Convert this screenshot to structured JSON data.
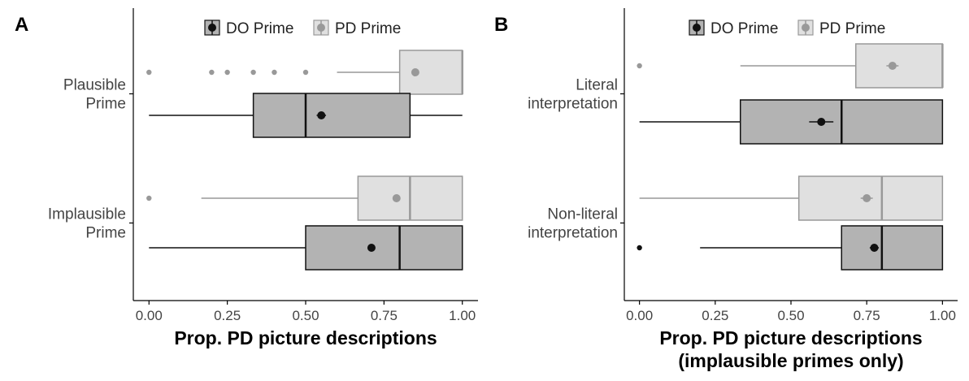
{
  "chart_data": [
    {
      "panel": "A",
      "type": "box",
      "orientation": "horizontal",
      "xlabel": "Prop. PD picture descriptions",
      "xlabel_line2": "",
      "xlim": [
        -0.05,
        1.05
      ],
      "xticks": [
        "0.00",
        "0.25",
        "0.50",
        "0.75",
        "1.00"
      ],
      "legend": {
        "position": "top",
        "entries": [
          "DO Prime",
          "PD Prime"
        ]
      },
      "groups": [
        {
          "label": [
            "Plausible",
            "Prime"
          ],
          "boxes": [
            {
              "series": "PD Prime",
              "whisker_low": 0.6,
              "q1": 0.8,
              "median": 1.0,
              "q3": 1.0,
              "whisker_high": 1.0,
              "mean": 0.85,
              "se": 0.008,
              "outliers": [
                0.0,
                0.2,
                0.25,
                0.333,
                0.4,
                0.5
              ]
            },
            {
              "series": "DO Prime",
              "whisker_low": 0.0,
              "q1": 0.333,
              "median": 0.5,
              "q3": 0.833,
              "whisker_high": 1.0,
              "mean": 0.55,
              "se": 0.015,
              "outliers": []
            }
          ]
        },
        {
          "label": [
            "Implausible",
            "Prime"
          ],
          "boxes": [
            {
              "series": "PD Prime",
              "whisker_low": 0.167,
              "q1": 0.667,
              "median": 0.833,
              "q3": 1.0,
              "whisker_high": 1.0,
              "mean": 0.79,
              "se": 0.012,
              "outliers": [
                0.0
              ]
            },
            {
              "series": "DO Prime",
              "whisker_low": 0.0,
              "q1": 0.5,
              "median": 0.8,
              "q3": 1.0,
              "whisker_high": 1.0,
              "mean": 0.71,
              "se": 0.012,
              "outliers": []
            }
          ]
        }
      ]
    },
    {
      "panel": "B",
      "type": "box",
      "orientation": "horizontal",
      "xlabel": "Prop. PD picture descriptions",
      "xlabel_line2": "(implausible primes only)",
      "xlim": [
        -0.05,
        1.05
      ],
      "xticks": [
        "0.00",
        "0.25",
        "0.50",
        "0.75",
        "1.00"
      ],
      "legend": {
        "position": "top",
        "entries": [
          "DO Prime",
          "PD Prime"
        ]
      },
      "groups": [
        {
          "label": [
            "Literal",
            "interpretation"
          ],
          "boxes": [
            {
              "series": "PD Prime",
              "whisker_low": 0.333,
              "q1": 0.714,
              "median": 1.0,
              "q3": 1.0,
              "whisker_high": 1.0,
              "mean": 0.835,
              "se": 0.02,
              "outliers": [
                0.0
              ]
            },
            {
              "series": "DO Prime",
              "whisker_low": 0.0,
              "q1": 0.333,
              "median": 0.667,
              "q3": 1.0,
              "whisker_high": 1.0,
              "mean": 0.6,
              "se": 0.04,
              "outliers": []
            }
          ]
        },
        {
          "label": [
            "Non-literal",
            "interpretation"
          ],
          "boxes": [
            {
              "series": "PD Prime",
              "whisker_low": 0.0,
              "q1": 0.526,
              "median": 0.8,
              "q3": 1.0,
              "whisker_high": 1.0,
              "mean": 0.75,
              "se": 0.02,
              "outliers": []
            },
            {
              "series": "DO Prime",
              "whisker_low": 0.2,
              "q1": 0.667,
              "median": 0.8,
              "q3": 1.0,
              "whisker_high": 1.0,
              "mean": 0.775,
              "se": 0.015,
              "outliers": [
                0.0
              ]
            }
          ]
        }
      ]
    }
  ],
  "colors": {
    "do_fill": "#b3b3b3",
    "do_line": "#111111",
    "pd_fill": "#e0e0e0",
    "pd_line": "#999999",
    "axis": "#000000",
    "tick_text": "#444444"
  }
}
